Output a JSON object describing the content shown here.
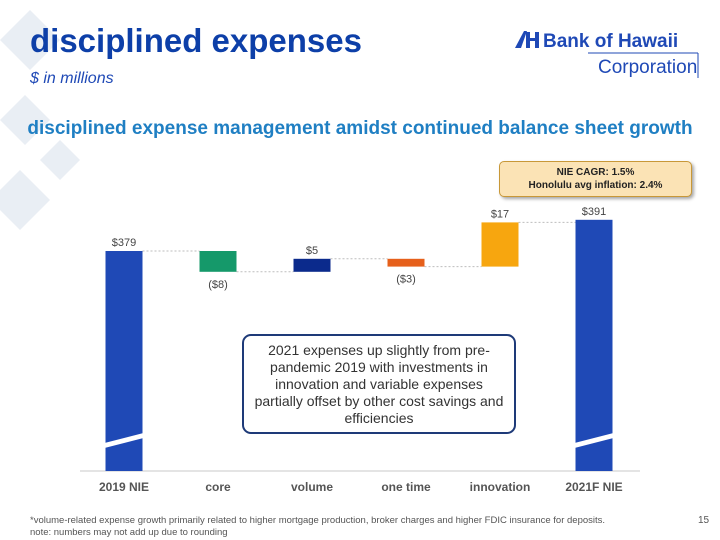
{
  "header": {
    "title": "disciplined expenses",
    "subtitle": "$ in millions",
    "headline": "disciplined expense management amidst continued balance sheet growth"
  },
  "logo": {
    "line1": "Bank of Hawaii",
    "line2": "Corporation"
  },
  "cagr_box": {
    "line1": "NIE CAGR: 1.5%",
    "line2": "Honolulu avg inflation: 2.4%"
  },
  "callout": {
    "text": "2021 expenses up slightly from pre-pandemic 2019 with investments in innovation and variable expenses partially offset by other cost savings and efficiencies"
  },
  "chart_data": {
    "type": "bar",
    "subtype": "waterfall",
    "categories": [
      "2019 NIE",
      "core",
      "volume",
      "one time",
      "innovation",
      "2021F NIE"
    ],
    "values": [
      379,
      -8,
      5,
      -3,
      17,
      391
    ],
    "labels": [
      "$379",
      "($8)",
      "$5",
      "($3)",
      "$17",
      "$391"
    ],
    "kinds": [
      "total",
      "delta",
      "delta",
      "delta",
      "delta",
      "total"
    ],
    "colors": [
      "#1f49b6",
      "#15996a",
      "#0b2a8c",
      "#e6601b",
      "#f7a60f",
      "#1f49b6"
    ],
    "axis_break": true,
    "ylim": [
      360,
      400
    ]
  },
  "footnote": {
    "line1": "*volume-related expense growth primarily related to higher mortgage production, broker charges and higher FDIC insurance for deposits.",
    "line2": "note: numbers may not add up due to rounding"
  },
  "page_number": "15"
}
